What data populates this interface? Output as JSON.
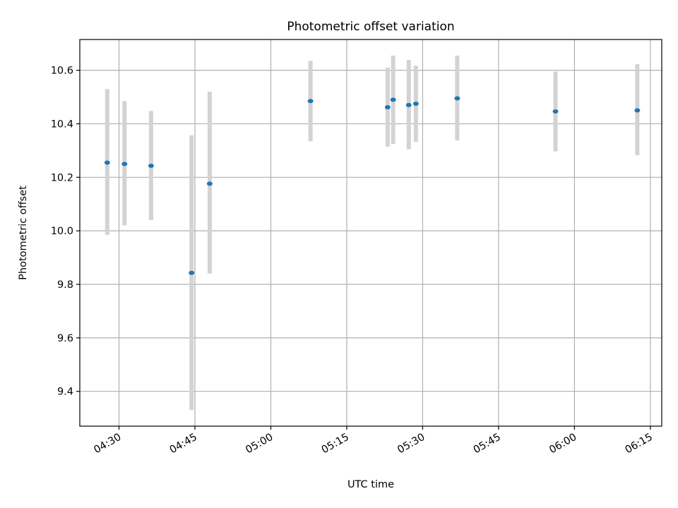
{
  "chart_data": {
    "type": "scatter",
    "title": "Photometric offset variation",
    "xlabel": "UTC time",
    "ylabel": "Photometric offset",
    "x_tick_labels": [
      "04:30",
      "04:45",
      "05:00",
      "05:15",
      "05:30",
      "05:45",
      "06:00",
      "06:15"
    ],
    "y_tick_labels": [
      "9.4",
      "9.6",
      "9.8",
      "10.0",
      "10.2",
      "10.4",
      "10.6"
    ],
    "xlim": [
      "04:22:15",
      "06:17:15"
    ],
    "ylim": [
      9.27,
      10.715
    ],
    "grid": true,
    "marker_color": "#1f77b4",
    "errorbar_color": "#d3d3d3",
    "points": [
      {
        "x": "04:27:40",
        "y": 10.255,
        "y_low": 9.985,
        "y_high": 10.53
      },
      {
        "x": "04:31:05",
        "y": 10.25,
        "y_low": 10.02,
        "y_high": 10.485
      },
      {
        "x": "04:36:20",
        "y": 10.243,
        "y_low": 10.04,
        "y_high": 10.448
      },
      {
        "x": "04:44:20",
        "y": 9.843,
        "y_low": 9.33,
        "y_high": 10.357
      },
      {
        "x": "04:47:55",
        "y": 10.176,
        "y_low": 9.84,
        "y_high": 10.52
      },
      {
        "x": "05:07:50",
        "y": 10.485,
        "y_low": 10.335,
        "y_high": 10.635
      },
      {
        "x": "05:23:05",
        "y": 10.462,
        "y_low": 10.315,
        "y_high": 10.61
      },
      {
        "x": "05:24:10",
        "y": 10.49,
        "y_low": 10.325,
        "y_high": 10.655
      },
      {
        "x": "05:27:15",
        "y": 10.47,
        "y_low": 10.305,
        "y_high": 10.638
      },
      {
        "x": "05:28:40",
        "y": 10.475,
        "y_low": 10.333,
        "y_high": 10.617
      },
      {
        "x": "05:36:50",
        "y": 10.495,
        "y_low": 10.338,
        "y_high": 10.655
      },
      {
        "x": "05:56:15",
        "y": 10.446,
        "y_low": 10.297,
        "y_high": 10.595
      },
      {
        "x": "06:12:25",
        "y": 10.45,
        "y_low": 10.283,
        "y_high": 10.623
      }
    ]
  }
}
